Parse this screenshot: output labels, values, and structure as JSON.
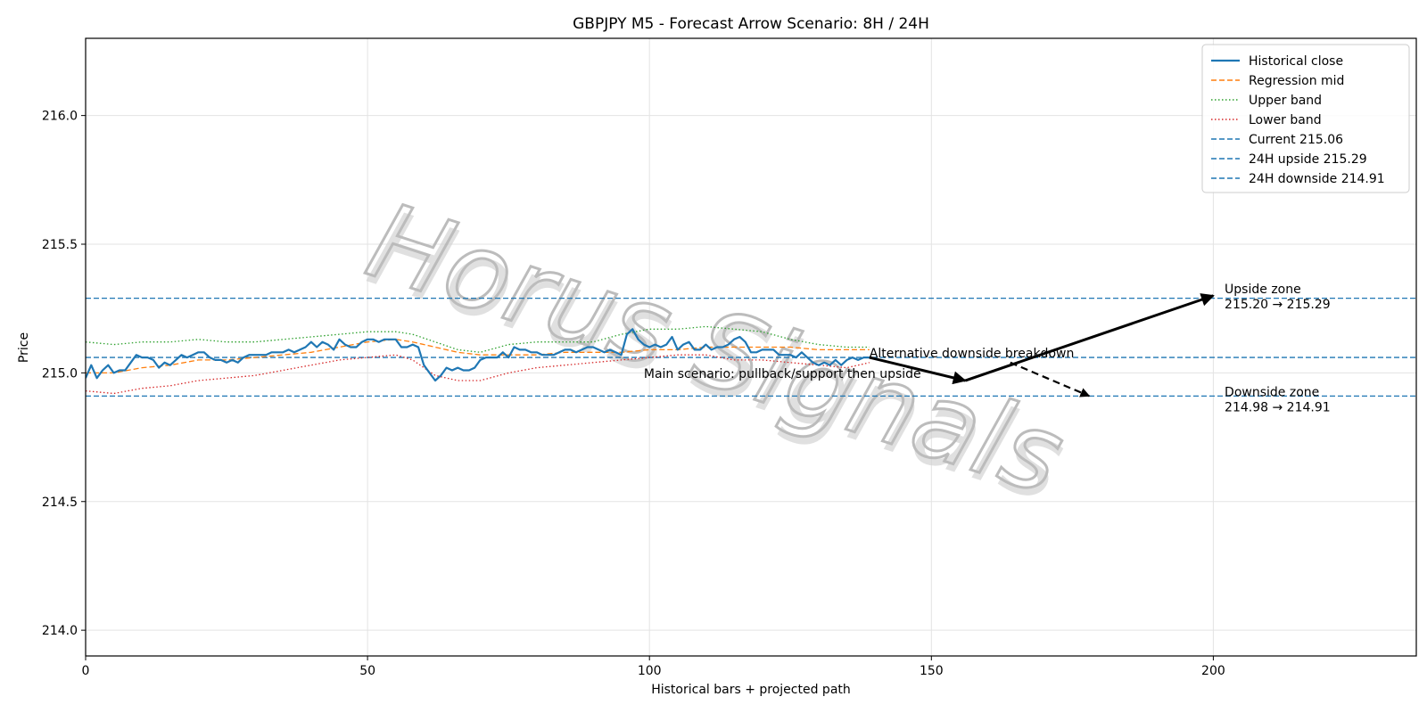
{
  "chart_data": {
    "type": "line",
    "title": "GBPJPY M5 - Forecast Arrow Scenario: 8H / 24H",
    "xlabel": "Historical bars + projected path",
    "ylabel": "Price",
    "xlim": [
      0,
      236
    ],
    "ylim": [
      213.9,
      216.3
    ],
    "x_ticks": [
      0,
      50,
      100,
      150,
      200
    ],
    "y_ticks": [
      214.0,
      214.5,
      215.0,
      215.5,
      216.0
    ],
    "y_tick_labels": [
      "214.0",
      "214.5",
      "215.0",
      "215.5",
      "216.0"
    ],
    "grid": true,
    "legend_position": "top-right",
    "watermark": "Horus Signals",
    "series": [
      {
        "name": "Historical close",
        "color": "#1f77b4",
        "style": "solid",
        "x": [
          0,
          1,
          2,
          3,
          4,
          5,
          6,
          7,
          8,
          9,
          10,
          11,
          12,
          13,
          14,
          15,
          16,
          17,
          18,
          19,
          20,
          21,
          22,
          23,
          24,
          25,
          26,
          27,
          28,
          29,
          30,
          31,
          32,
          33,
          34,
          35,
          36,
          37,
          38,
          39,
          40,
          41,
          42,
          43,
          44,
          45,
          46,
          47,
          48,
          49,
          50,
          51,
          52,
          53,
          54,
          55,
          56,
          57,
          58,
          59,
          60,
          61,
          62,
          63,
          64,
          65,
          66,
          67,
          68,
          69,
          70,
          71,
          72,
          73,
          74,
          75,
          76,
          77,
          78,
          79,
          80,
          81,
          82,
          83,
          84,
          85,
          86,
          87,
          88,
          89,
          90,
          91,
          92,
          93,
          94,
          95,
          96,
          97,
          98,
          99,
          100,
          101,
          102,
          103,
          104,
          105,
          106,
          107,
          108,
          109,
          110,
          111,
          112,
          113,
          114,
          115,
          116,
          117,
          118,
          119,
          120,
          121,
          122,
          123,
          124,
          125,
          126,
          127,
          128,
          129,
          130,
          131,
          132,
          133,
          134,
          135,
          136,
          137,
          138,
          139
        ],
        "values": [
          214.98,
          215.03,
          214.98,
          215.01,
          215.03,
          215.0,
          215.01,
          215.01,
          215.04,
          215.07,
          215.06,
          215.06,
          215.05,
          215.02,
          215.04,
          215.03,
          215.05,
          215.07,
          215.06,
          215.07,
          215.08,
          215.08,
          215.06,
          215.05,
          215.05,
          215.04,
          215.05,
          215.04,
          215.06,
          215.07,
          215.07,
          215.07,
          215.07,
          215.08,
          215.08,
          215.08,
          215.09,
          215.08,
          215.09,
          215.1,
          215.12,
          215.1,
          215.12,
          215.11,
          215.09,
          215.13,
          215.11,
          215.1,
          215.1,
          215.12,
          215.13,
          215.13,
          215.12,
          215.13,
          215.13,
          215.13,
          215.1,
          215.1,
          215.11,
          215.1,
          215.03,
          215.0,
          214.97,
          214.99,
          215.02,
          215.01,
          215.02,
          215.01,
          215.01,
          215.02,
          215.05,
          215.06,
          215.06,
          215.06,
          215.08,
          215.06,
          215.1,
          215.09,
          215.09,
          215.08,
          215.08,
          215.07,
          215.07,
          215.07,
          215.08,
          215.09,
          215.09,
          215.08,
          215.09,
          215.1,
          215.1,
          215.09,
          215.08,
          215.09,
          215.08,
          215.07,
          215.15,
          215.17,
          215.13,
          215.11,
          215.1,
          215.11,
          215.1,
          215.11,
          215.14,
          215.09,
          215.11,
          215.12,
          215.09,
          215.09,
          215.11,
          215.09,
          215.1,
          215.1,
          215.11,
          215.13,
          215.14,
          215.12,
          215.08,
          215.08,
          215.09,
          215.09,
          215.09,
          215.07,
          215.07,
          215.07,
          215.06,
          215.08,
          215.06,
          215.04,
          215.03,
          215.04,
          215.03,
          215.05,
          215.03,
          215.05,
          215.06,
          215.05,
          215.06,
          215.06
        ]
      },
      {
        "name": "Regression mid",
        "color": "#ff7f0e",
        "style": "dashed",
        "x": [
          0,
          5,
          10,
          15,
          20,
          25,
          30,
          35,
          40,
          45,
          50,
          55,
          58,
          62,
          66,
          70,
          75,
          80,
          85,
          90,
          95,
          100,
          105,
          110,
          115,
          120,
          125,
          130,
          135,
          139
        ],
        "values": [
          215.0,
          215.0,
          215.02,
          215.03,
          215.05,
          215.05,
          215.06,
          215.07,
          215.08,
          215.1,
          215.12,
          215.13,
          215.12,
          215.1,
          215.08,
          215.07,
          215.07,
          215.07,
          215.08,
          215.08,
          215.08,
          215.09,
          215.09,
          215.1,
          215.1,
          215.1,
          215.1,
          215.09,
          215.09,
          215.09
        ]
      },
      {
        "name": "Upper band",
        "color": "#2ca02c",
        "style": "dotted",
        "x": [
          0,
          5,
          10,
          15,
          20,
          25,
          30,
          35,
          40,
          45,
          50,
          55,
          58,
          62,
          66,
          70,
          75,
          80,
          85,
          90,
          95,
          100,
          105,
          110,
          115,
          120,
          125,
          130,
          135,
          139
        ],
        "values": [
          215.12,
          215.11,
          215.12,
          215.12,
          215.13,
          215.12,
          215.12,
          215.13,
          215.14,
          215.15,
          215.16,
          215.16,
          215.15,
          215.12,
          215.09,
          215.08,
          215.11,
          215.12,
          215.12,
          215.12,
          215.15,
          215.17,
          215.17,
          215.18,
          215.17,
          215.16,
          215.13,
          215.11,
          215.1,
          215.1
        ]
      },
      {
        "name": "Lower band",
        "color": "#d62728",
        "style": "dotted",
        "x": [
          0,
          5,
          10,
          15,
          20,
          25,
          30,
          35,
          40,
          45,
          50,
          55,
          58,
          62,
          66,
          70,
          75,
          80,
          85,
          90,
          95,
          100,
          105,
          110,
          115,
          120,
          125,
          130,
          135,
          139
        ],
        "values": [
          214.93,
          214.92,
          214.94,
          214.95,
          214.97,
          214.98,
          214.99,
          215.01,
          215.03,
          215.05,
          215.06,
          215.07,
          215.05,
          214.99,
          214.97,
          214.97,
          215.0,
          215.02,
          215.03,
          215.04,
          215.05,
          215.06,
          215.07,
          215.07,
          215.05,
          215.05,
          215.04,
          215.03,
          215.02,
          215.04
        ]
      }
    ],
    "hlines": [
      {
        "name": "Current 215.06",
        "y": 215.06,
        "color": "#1f77b4"
      },
      {
        "name": "24H upside 215.29",
        "y": 215.29,
        "color": "#1f77b4"
      },
      {
        "name": "24H downside 214.91",
        "y": 214.91,
        "color": "#1f77b4"
      }
    ],
    "arrows": [
      {
        "name": "main-pullback-arrow",
        "from": [
          139,
          215.06
        ],
        "to": [
          156,
          214.97
        ],
        "style": "solid"
      },
      {
        "name": "main-upside-arrow",
        "from": [
          156,
          214.97
        ],
        "to": [
          200,
          215.3
        ],
        "style": "solid"
      },
      {
        "name": "alternative-downside-arrow",
        "from": [
          164,
          215.04
        ],
        "to": [
          178,
          214.91
        ],
        "style": "dashed"
      }
    ],
    "annotations": [
      {
        "key": "upside_zone_title",
        "text": "Upside zone",
        "x": 202,
        "y": 215.31,
        "anchor": "start"
      },
      {
        "key": "upside_zone_range",
        "text": "215.20 → 215.29",
        "x": 202,
        "y": 215.25,
        "anchor": "start"
      },
      {
        "key": "downside_zone_title",
        "text": "Downside zone",
        "x": 202,
        "y": 214.91,
        "anchor": "start"
      },
      {
        "key": "downside_zone_range",
        "text": "214.98 → 214.91",
        "x": 202,
        "y": 214.85,
        "anchor": "start"
      },
      {
        "key": "alt_scenario",
        "text": "Alternative downside breakdown",
        "x": 139,
        "y": 215.06,
        "anchor": "start"
      },
      {
        "key": "main_scenario",
        "text": "Main scenario: pullback/support then upside",
        "x": 99,
        "y": 214.98,
        "anchor": "start"
      }
    ]
  }
}
